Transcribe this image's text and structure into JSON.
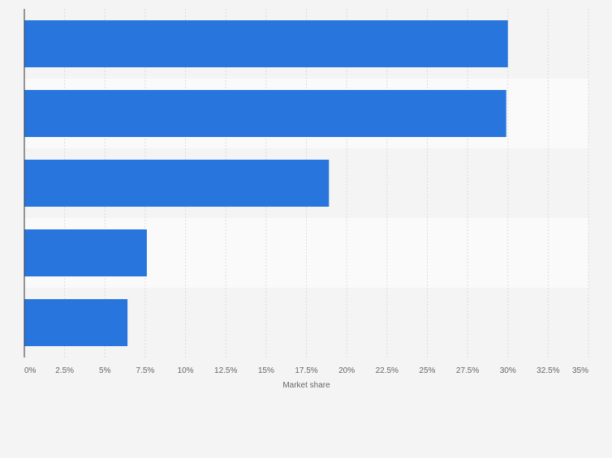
{
  "chart_data": {
    "type": "bar",
    "orientation": "horizontal",
    "title": "",
    "xlabel": "Market share",
    "ylabel": "",
    "categories": [
      "",
      "",
      "",
      "",
      ""
    ],
    "values": [
      30.0,
      29.9,
      18.9,
      7.6,
      6.4
    ],
    "xlim": [
      0,
      35
    ],
    "ticks": [
      {
        "value": 0,
        "label": "0%"
      },
      {
        "value": 2.5,
        "label": "2.5%"
      },
      {
        "value": 5,
        "label": "5%"
      },
      {
        "value": 7.5,
        "label": "7.5%"
      },
      {
        "value": 10,
        "label": "10%"
      },
      {
        "value": 12.5,
        "label": "12.5%"
      },
      {
        "value": 15,
        "label": "15%"
      },
      {
        "value": 17.5,
        "label": "17.5%"
      },
      {
        "value": 20,
        "label": "20%"
      },
      {
        "value": 22.5,
        "label": "22.5%"
      },
      {
        "value": 25,
        "label": "25%"
      },
      {
        "value": 27.5,
        "label": "27.5%"
      },
      {
        "value": 30,
        "label": "30%"
      },
      {
        "value": 32.5,
        "label": "32.5%"
      },
      {
        "value": 35,
        "label": "35%"
      }
    ],
    "grid": true,
    "legend": "none",
    "colors": {
      "bar": "#2876dd",
      "background": "#f4f4f4",
      "band_even": "#f4f4f4",
      "band_odd": "#fafafa",
      "grid": "#dcdcdc",
      "axis": "#333333",
      "text": "#666666"
    }
  }
}
